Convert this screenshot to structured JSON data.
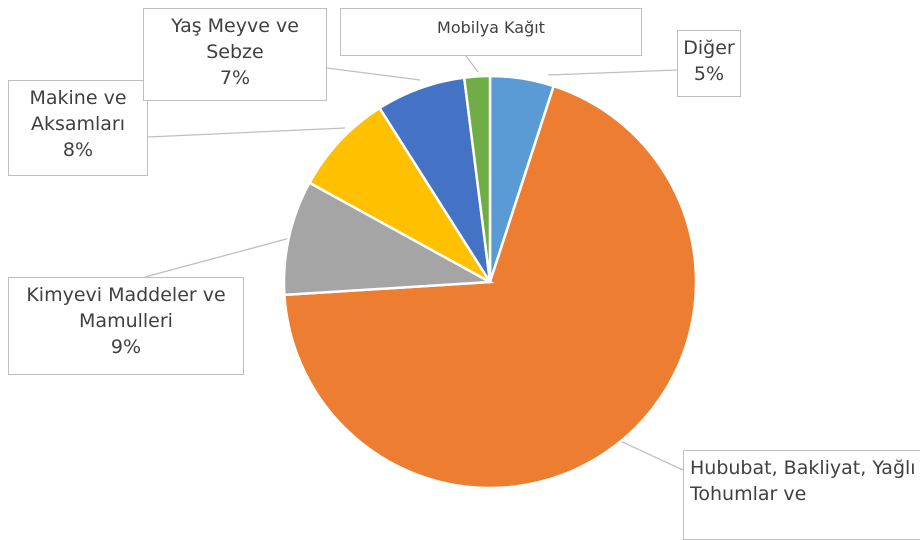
{
  "chart_data": {
    "type": "pie",
    "categories": [
      "Diğer",
      "Hububat, Bakliyat, Yağlı Tohumlar ve",
      "Kimyevi Maddeler ve Mamulleri",
      "Makine ve Aksamları",
      "Yaş Meyve ve Sebze",
      "Mobilya Kağıt"
    ],
    "values": [
      5,
      69,
      9,
      8,
      7,
      2
    ],
    "value_labels": [
      "5%",
      null,
      "9%",
      "8%",
      "7%",
      null
    ],
    "colors": [
      "#5b9bd5",
      "#ed7d31",
      "#a5a5a5",
      "#ffc000",
      "#4472c4",
      "#70ad47"
    ]
  }
}
